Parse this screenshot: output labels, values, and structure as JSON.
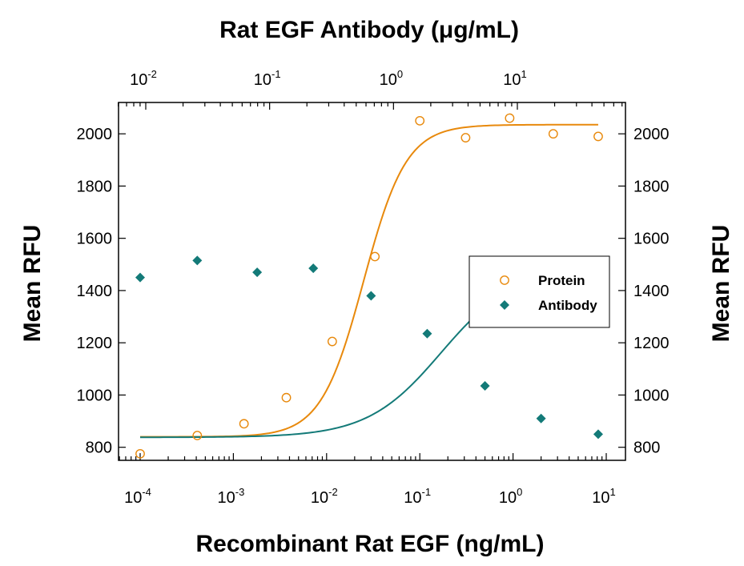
{
  "chart_data": {
    "type": "scatter",
    "title": "Rat EGF Antibody (μg/mL)",
    "xlabel": "Recombinant Rat EGF (ng/mL)",
    "ylabel": "Mean RFU",
    "ylabel_right": "Mean RFU",
    "x_scale": "log",
    "xlim": [
      0.0001,
      10
    ],
    "ylim": [
      750,
      2120
    ],
    "top_axis": {
      "label": "Rat EGF Antibody (μg/mL)",
      "scale": "log",
      "range": [
        0.0085,
        45
      ],
      "ticks": [
        0.01,
        0.1,
        1,
        10
      ],
      "tick_labels": [
        {
          "base": "10",
          "exp": "-2"
        },
        {
          "base": "10",
          "exp": "-1"
        },
        {
          "base": "10",
          "exp": "0"
        },
        {
          "base": "10",
          "exp": "1"
        }
      ]
    },
    "x_ticks": [
      0.0001,
      0.001,
      0.01,
      0.1,
      1,
      10
    ],
    "x_tick_labels": [
      {
        "base": "10",
        "exp": "-4"
      },
      {
        "base": "10",
        "exp": "-3"
      },
      {
        "base": "10",
        "exp": "-2"
      },
      {
        "base": "10",
        "exp": "-1"
      },
      {
        "base": "10",
        "exp": "0"
      },
      {
        "base": "10",
        "exp": "1"
      }
    ],
    "y_ticks": [
      800,
      1000,
      1200,
      1400,
      1600,
      1800,
      2000
    ],
    "y_tick_labels": [
      "800",
      "1000",
      "1200",
      "1400",
      "1600",
      "1800",
      "2000"
    ],
    "grid": false,
    "legend_position": "right",
    "series": [
      {
        "name": "Protein",
        "marker": "open-circle",
        "color": "#E8890C",
        "x": [
          0.0001,
          0.00041,
          0.0013,
          0.0037,
          0.0115,
          0.033,
          0.1,
          0.31,
          0.92,
          2.7,
          8.2
        ],
        "y": [
          775,
          845,
          890,
          990,
          1205,
          1530,
          2050,
          1985,
          2060,
          2000,
          1990
        ],
        "fit": {
          "bottom": 840,
          "top": 2035,
          "ec50": 0.025,
          "hill": 1.9
        }
      },
      {
        "name": "Antibody",
        "marker": "filled-diamond",
        "color": "#137A78",
        "x": [
          0.0001,
          0.00041,
          0.0018,
          0.0072,
          0.03,
          0.12,
          0.5,
          2.0,
          8.2
        ],
        "y": [
          1450,
          1515,
          1470,
          1485,
          1380,
          1235,
          1035,
          910,
          850
        ],
        "fit": {
          "bottom": 838,
          "top": 1488,
          "ec50": 0.17,
          "hill": 1.1
        }
      }
    ]
  }
}
